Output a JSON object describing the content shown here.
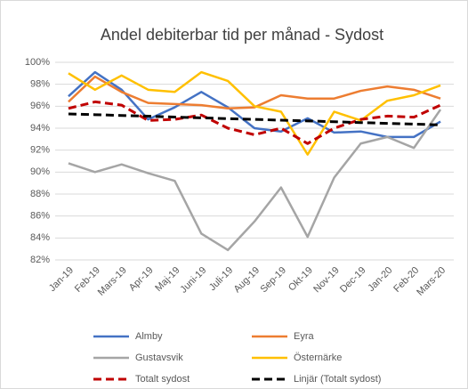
{
  "chart_data": {
    "type": "line",
    "title": "Andel debiterbar tid per månad - Sydost",
    "categories": [
      "Jan-19",
      "Feb-19",
      "Mars-19",
      "Apr-19",
      "Maj-19",
      "Juni-19",
      "Juli-19",
      "Aug-19",
      "Sep-19",
      "Okt-19",
      "Nov-19",
      "Dec-19",
      "Jan-20",
      "Feb-20",
      "Mars-20"
    ],
    "ylim": [
      82,
      100
    ],
    "yticks": [
      {
        "value": 82,
        "label": "82%"
      },
      {
        "value": 84,
        "label": "84%"
      },
      {
        "value": 86,
        "label": "86%"
      },
      {
        "value": 88,
        "label": "88%"
      },
      {
        "value": 90,
        "label": "90%"
      },
      {
        "value": 92,
        "label": "92%"
      },
      {
        "value": 94,
        "label": "94%"
      },
      {
        "value": 96,
        "label": "96%"
      },
      {
        "value": 98,
        "label": "98%"
      },
      {
        "value": 100,
        "label": "100%"
      }
    ],
    "grid": true,
    "series": [
      {
        "name": "Almby",
        "color": "#4472c4",
        "dashed": false,
        "values": [
          96.9,
          99.1,
          97.5,
          94.8,
          95.9,
          97.3,
          95.9,
          94.0,
          93.7,
          94.9,
          93.6,
          93.7,
          93.2,
          93.2,
          94.6
        ]
      },
      {
        "name": "Eyra",
        "color": "#ed7d31",
        "dashed": false,
        "values": [
          96.4,
          98.7,
          97.3,
          96.3,
          96.2,
          96.1,
          95.8,
          95.9,
          97.0,
          96.7,
          96.7,
          97.4,
          97.8,
          97.5,
          96.7
        ]
      },
      {
        "name": "Gustavsvik",
        "color": "#a5a5a5",
        "dashed": false,
        "values": [
          90.8,
          90.0,
          90.7,
          89.9,
          89.2,
          84.4,
          82.9,
          85.5,
          88.6,
          84.1,
          89.5,
          92.6,
          93.2,
          92.2,
          95.7
        ]
      },
      {
        "name": "Östernärke",
        "color": "#ffc000",
        "dashed": false,
        "values": [
          99.0,
          97.5,
          98.8,
          97.5,
          97.3,
          99.1,
          98.3,
          96.0,
          95.5,
          91.6,
          95.5,
          94.7,
          96.5,
          97.0,
          97.9
        ]
      },
      {
        "name": "Totalt sydost",
        "color": "#c00000",
        "dashed": true,
        "values": [
          95.8,
          96.4,
          96.1,
          94.7,
          94.8,
          95.2,
          94.0,
          93.4,
          94.0,
          92.6,
          94.0,
          94.8,
          95.1,
          95.0,
          96.1
        ]
      },
      {
        "name": "Linjär (Totalt sydost)",
        "color": "#000000",
        "dashed": true,
        "values": [
          95.3,
          95.23,
          95.16,
          95.09,
          95.01,
          94.94,
          94.87,
          94.8,
          94.73,
          94.66,
          94.59,
          94.51,
          94.44,
          94.37,
          94.3
        ]
      }
    ]
  }
}
